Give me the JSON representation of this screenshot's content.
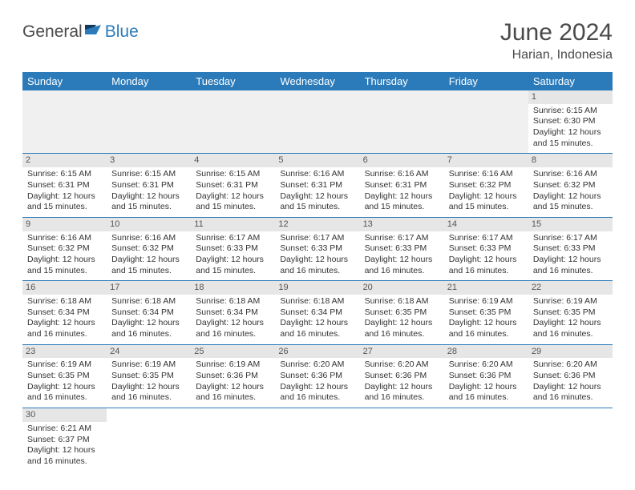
{
  "brand": {
    "part1": "General",
    "part2": "Blue"
  },
  "title": "June 2024",
  "location": "Harian, Indonesia",
  "colors": {
    "header_bg": "#2b7bba",
    "header_fg": "#ffffff",
    "daynum_bg": "#e6e6e6",
    "empty_bg": "#f0f0f0",
    "border": "#2b7bba",
    "text": "#333333"
  },
  "weekdays": [
    "Sunday",
    "Monday",
    "Tuesday",
    "Wednesday",
    "Thursday",
    "Friday",
    "Saturday"
  ],
  "grid": [
    [
      {
        "empty": true
      },
      {
        "empty": true
      },
      {
        "empty": true
      },
      {
        "empty": true
      },
      {
        "empty": true
      },
      {
        "empty": true
      },
      {
        "day": "1",
        "sunrise": "Sunrise: 6:15 AM",
        "sunset": "Sunset: 6:30 PM",
        "daylight1": "Daylight: 12 hours",
        "daylight2": "and 15 minutes."
      }
    ],
    [
      {
        "day": "2",
        "sunrise": "Sunrise: 6:15 AM",
        "sunset": "Sunset: 6:31 PM",
        "daylight1": "Daylight: 12 hours",
        "daylight2": "and 15 minutes."
      },
      {
        "day": "3",
        "sunrise": "Sunrise: 6:15 AM",
        "sunset": "Sunset: 6:31 PM",
        "daylight1": "Daylight: 12 hours",
        "daylight2": "and 15 minutes."
      },
      {
        "day": "4",
        "sunrise": "Sunrise: 6:15 AM",
        "sunset": "Sunset: 6:31 PM",
        "daylight1": "Daylight: 12 hours",
        "daylight2": "and 15 minutes."
      },
      {
        "day": "5",
        "sunrise": "Sunrise: 6:16 AM",
        "sunset": "Sunset: 6:31 PM",
        "daylight1": "Daylight: 12 hours",
        "daylight2": "and 15 minutes."
      },
      {
        "day": "6",
        "sunrise": "Sunrise: 6:16 AM",
        "sunset": "Sunset: 6:31 PM",
        "daylight1": "Daylight: 12 hours",
        "daylight2": "and 15 minutes."
      },
      {
        "day": "7",
        "sunrise": "Sunrise: 6:16 AM",
        "sunset": "Sunset: 6:32 PM",
        "daylight1": "Daylight: 12 hours",
        "daylight2": "and 15 minutes."
      },
      {
        "day": "8",
        "sunrise": "Sunrise: 6:16 AM",
        "sunset": "Sunset: 6:32 PM",
        "daylight1": "Daylight: 12 hours",
        "daylight2": "and 15 minutes."
      }
    ],
    [
      {
        "day": "9",
        "sunrise": "Sunrise: 6:16 AM",
        "sunset": "Sunset: 6:32 PM",
        "daylight1": "Daylight: 12 hours",
        "daylight2": "and 15 minutes."
      },
      {
        "day": "10",
        "sunrise": "Sunrise: 6:16 AM",
        "sunset": "Sunset: 6:32 PM",
        "daylight1": "Daylight: 12 hours",
        "daylight2": "and 15 minutes."
      },
      {
        "day": "11",
        "sunrise": "Sunrise: 6:17 AM",
        "sunset": "Sunset: 6:33 PM",
        "daylight1": "Daylight: 12 hours",
        "daylight2": "and 15 minutes."
      },
      {
        "day": "12",
        "sunrise": "Sunrise: 6:17 AM",
        "sunset": "Sunset: 6:33 PM",
        "daylight1": "Daylight: 12 hours",
        "daylight2": "and 16 minutes."
      },
      {
        "day": "13",
        "sunrise": "Sunrise: 6:17 AM",
        "sunset": "Sunset: 6:33 PM",
        "daylight1": "Daylight: 12 hours",
        "daylight2": "and 16 minutes."
      },
      {
        "day": "14",
        "sunrise": "Sunrise: 6:17 AM",
        "sunset": "Sunset: 6:33 PM",
        "daylight1": "Daylight: 12 hours",
        "daylight2": "and 16 minutes."
      },
      {
        "day": "15",
        "sunrise": "Sunrise: 6:17 AM",
        "sunset": "Sunset: 6:33 PM",
        "daylight1": "Daylight: 12 hours",
        "daylight2": "and 16 minutes."
      }
    ],
    [
      {
        "day": "16",
        "sunrise": "Sunrise: 6:18 AM",
        "sunset": "Sunset: 6:34 PM",
        "daylight1": "Daylight: 12 hours",
        "daylight2": "and 16 minutes."
      },
      {
        "day": "17",
        "sunrise": "Sunrise: 6:18 AM",
        "sunset": "Sunset: 6:34 PM",
        "daylight1": "Daylight: 12 hours",
        "daylight2": "and 16 minutes."
      },
      {
        "day": "18",
        "sunrise": "Sunrise: 6:18 AM",
        "sunset": "Sunset: 6:34 PM",
        "daylight1": "Daylight: 12 hours",
        "daylight2": "and 16 minutes."
      },
      {
        "day": "19",
        "sunrise": "Sunrise: 6:18 AM",
        "sunset": "Sunset: 6:34 PM",
        "daylight1": "Daylight: 12 hours",
        "daylight2": "and 16 minutes."
      },
      {
        "day": "20",
        "sunrise": "Sunrise: 6:18 AM",
        "sunset": "Sunset: 6:35 PM",
        "daylight1": "Daylight: 12 hours",
        "daylight2": "and 16 minutes."
      },
      {
        "day": "21",
        "sunrise": "Sunrise: 6:19 AM",
        "sunset": "Sunset: 6:35 PM",
        "daylight1": "Daylight: 12 hours",
        "daylight2": "and 16 minutes."
      },
      {
        "day": "22",
        "sunrise": "Sunrise: 6:19 AM",
        "sunset": "Sunset: 6:35 PM",
        "daylight1": "Daylight: 12 hours",
        "daylight2": "and 16 minutes."
      }
    ],
    [
      {
        "day": "23",
        "sunrise": "Sunrise: 6:19 AM",
        "sunset": "Sunset: 6:35 PM",
        "daylight1": "Daylight: 12 hours",
        "daylight2": "and 16 minutes."
      },
      {
        "day": "24",
        "sunrise": "Sunrise: 6:19 AM",
        "sunset": "Sunset: 6:35 PM",
        "daylight1": "Daylight: 12 hours",
        "daylight2": "and 16 minutes."
      },
      {
        "day": "25",
        "sunrise": "Sunrise: 6:19 AM",
        "sunset": "Sunset: 6:36 PM",
        "daylight1": "Daylight: 12 hours",
        "daylight2": "and 16 minutes."
      },
      {
        "day": "26",
        "sunrise": "Sunrise: 6:20 AM",
        "sunset": "Sunset: 6:36 PM",
        "daylight1": "Daylight: 12 hours",
        "daylight2": "and 16 minutes."
      },
      {
        "day": "27",
        "sunrise": "Sunrise: 6:20 AM",
        "sunset": "Sunset: 6:36 PM",
        "daylight1": "Daylight: 12 hours",
        "daylight2": "and 16 minutes."
      },
      {
        "day": "28",
        "sunrise": "Sunrise: 6:20 AM",
        "sunset": "Sunset: 6:36 PM",
        "daylight1": "Daylight: 12 hours",
        "daylight2": "and 16 minutes."
      },
      {
        "day": "29",
        "sunrise": "Sunrise: 6:20 AM",
        "sunset": "Sunset: 6:36 PM",
        "daylight1": "Daylight: 12 hours",
        "daylight2": "and 16 minutes."
      }
    ],
    [
      {
        "day": "30",
        "sunrise": "Sunrise: 6:21 AM",
        "sunset": "Sunset: 6:37 PM",
        "daylight1": "Daylight: 12 hours",
        "daylight2": "and 16 minutes."
      },
      {
        "empty": true,
        "last": true
      },
      {
        "empty": true,
        "last": true
      },
      {
        "empty": true,
        "last": true
      },
      {
        "empty": true,
        "last": true
      },
      {
        "empty": true,
        "last": true
      },
      {
        "empty": true,
        "last": true
      }
    ]
  ]
}
